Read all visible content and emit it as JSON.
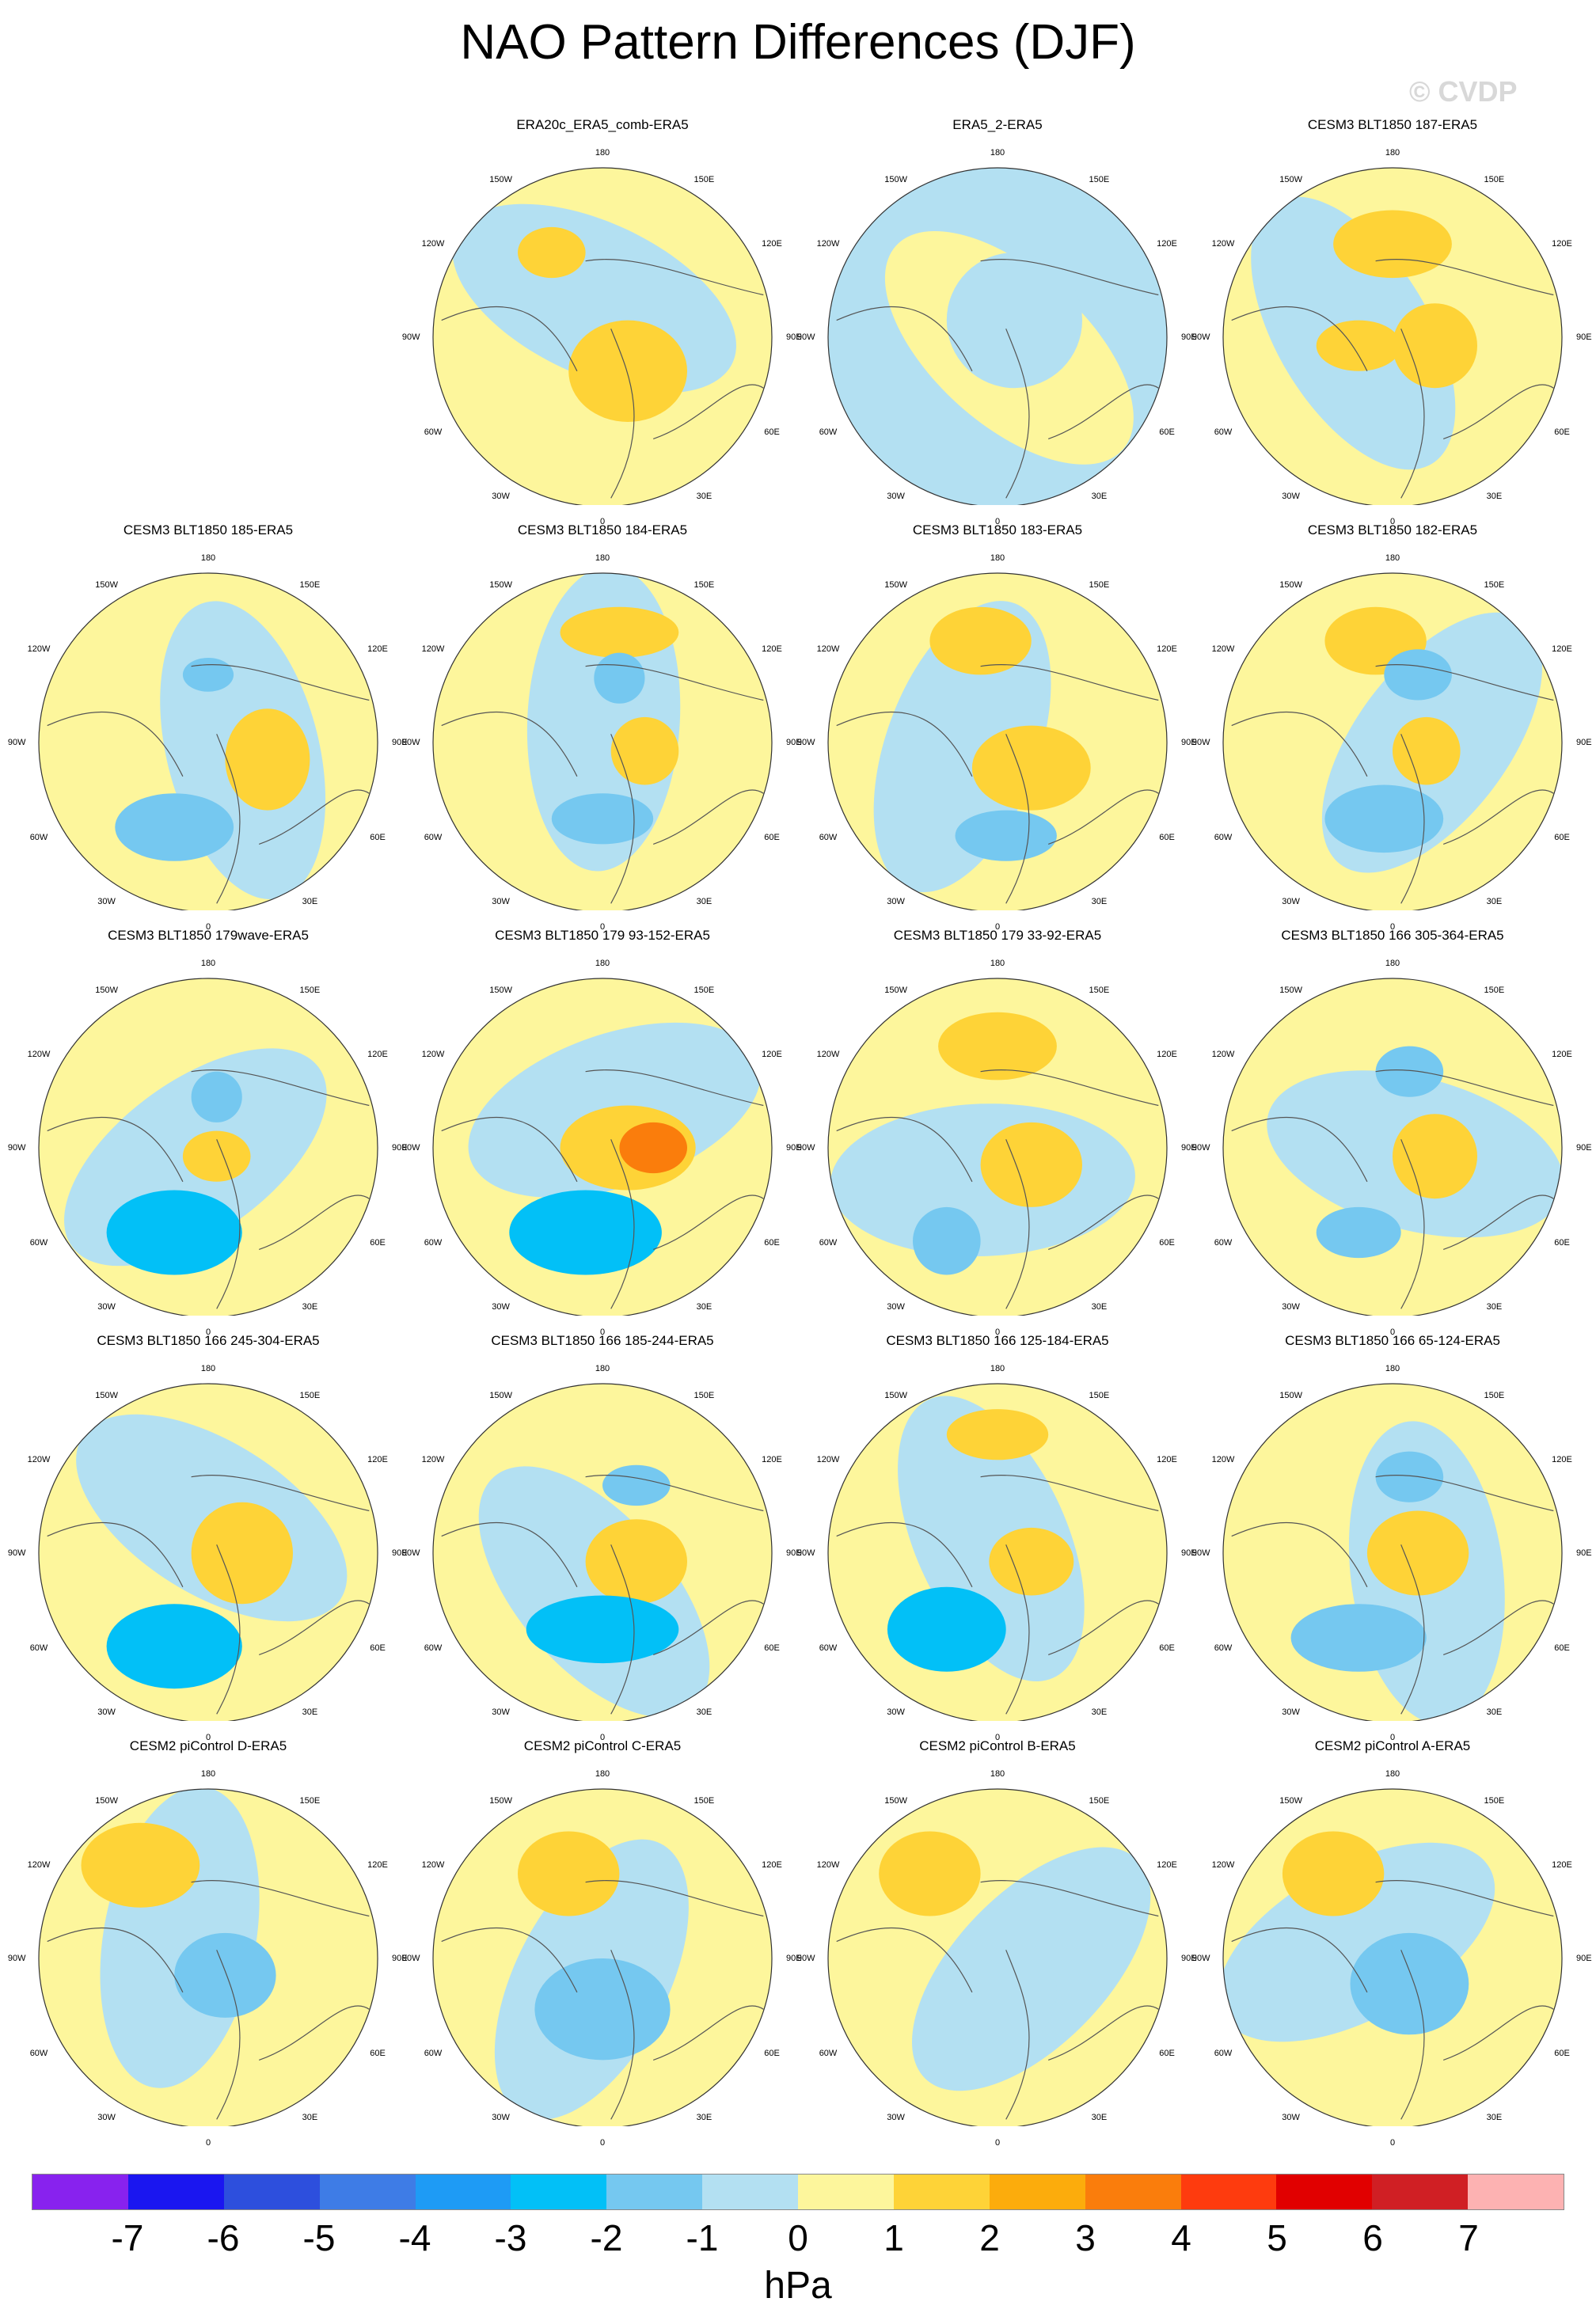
{
  "title": "NAO Pattern Differences (DJF)",
  "copyright": "© CVDP",
  "units": "hPa",
  "lon_labels": {
    "top": "180",
    "tl": "150W",
    "tr": "150E",
    "ul": "120W",
    "ur": "120E",
    "l": "90W",
    "r": "90E",
    "ll": "60W",
    "lr": "60E",
    "bl": "30W",
    "br": "30E",
    "b": "0"
  },
  "colorbar": {
    "colors": [
      "#8822ee",
      "#1a16f0",
      "#2d4fdd",
      "#3e7ce6",
      "#1e9bf5",
      "#02c0f7",
      "#75c8f0",
      "#b3e0f2",
      "#fdf69c",
      "#fed337",
      "#fcac0c",
      "#fa7d0c",
      "#fe3b0e",
      "#e10000",
      "#d01f24",
      "#fdb2b2"
    ],
    "ticks": [
      "-7",
      "-6",
      "-5",
      "-4",
      "-3",
      "-2",
      "-1",
      "0",
      "1",
      "2",
      "3",
      "4",
      "5",
      "6",
      "7"
    ]
  },
  "panels": [
    {
      "title": "ERA20c_ERA5_comb-ERA5",
      "row": 0,
      "col": 1
    },
    {
      "title": "ERA5_2-ERA5",
      "row": 0,
      "col": 2
    },
    {
      "title": "CESM3 BLT1850 187-ERA5",
      "row": 0,
      "col": 3
    },
    {
      "title": "CESM3 BLT1850 185-ERA5",
      "row": 1,
      "col": 0
    },
    {
      "title": "CESM3 BLT1850 184-ERA5",
      "row": 1,
      "col": 1
    },
    {
      "title": "CESM3 BLT1850 183-ERA5",
      "row": 1,
      "col": 2
    },
    {
      "title": "CESM3 BLT1850 182-ERA5",
      "row": 1,
      "col": 3
    },
    {
      "title": "CESM3 BLT1850 179wave-ERA5",
      "row": 2,
      "col": 0
    },
    {
      "title": "CESM3 BLT1850 179 93-152-ERA5",
      "row": 2,
      "col": 1
    },
    {
      "title": "CESM3 BLT1850 179 33-92-ERA5",
      "row": 2,
      "col": 2
    },
    {
      "title": "CESM3 BLT1850 166 305-364-ERA5",
      "row": 2,
      "col": 3
    },
    {
      "title": "CESM3 BLT1850 166 245-304-ERA5",
      "row": 3,
      "col": 0
    },
    {
      "title": "CESM3 BLT1850 166 185-244-ERA5",
      "row": 3,
      "col": 1
    },
    {
      "title": "CESM3 BLT1850 166 125-184-ERA5",
      "row": 3,
      "col": 2
    },
    {
      "title": "CESM3 BLT1850 166 65-124-ERA5",
      "row": 3,
      "col": 3
    },
    {
      "title": "CESM2 piControl D-ERA5",
      "row": 4,
      "col": 0
    },
    {
      "title": "CESM2 piControl C-ERA5",
      "row": 4,
      "col": 1
    },
    {
      "title": "CESM2 piControl B-ERA5",
      "row": 4,
      "col": 2
    },
    {
      "title": "CESM2 piControl A-ERA5",
      "row": 4,
      "col": 3
    }
  ]
}
